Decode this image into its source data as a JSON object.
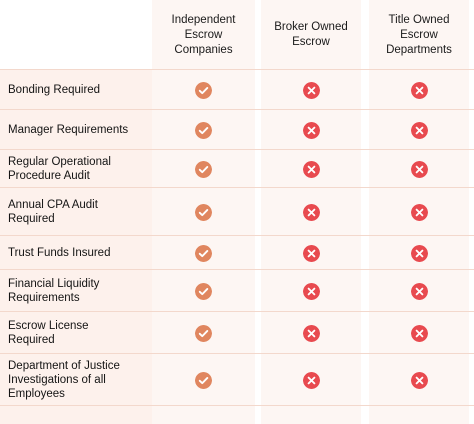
{
  "columns": [
    "Independent\nEscrow\nCompanies",
    "Broker Owned\nEscrow",
    "Title Owned\nEscrow\nDepartments"
  ],
  "rows": [
    {
      "label": "Bonding Required",
      "values": [
        "check",
        "cross",
        "cross"
      ]
    },
    {
      "label": "Manager Requirements",
      "values": [
        "check",
        "cross",
        "cross"
      ]
    },
    {
      "label": "Regular Operational\nProcedure Audit",
      "values": [
        "check",
        "cross",
        "cross"
      ]
    },
    {
      "label": "Annual CPA Audit\nRequired",
      "values": [
        "check",
        "cross",
        "cross"
      ]
    },
    {
      "label": "Trust Funds Insured",
      "values": [
        "check",
        "cross",
        "cross"
      ]
    },
    {
      "label": "Financial Liquidity\nRequirements",
      "values": [
        "check",
        "cross",
        "cross"
      ]
    },
    {
      "label": "Escrow License\nRequired",
      "values": [
        "check",
        "cross",
        "cross"
      ]
    },
    {
      "label": "Department of Justice\nInvestigations of all\nEmployees",
      "values": [
        "check",
        "cross",
        "cross"
      ]
    }
  ],
  "icons": {
    "check": "check-icon",
    "cross": "cross-icon"
  },
  "colors": {
    "check": "#e0865f",
    "cross": "#e84a4f",
    "label_bg": "#fdf1ec",
    "column_bg": "#fdf6f3"
  }
}
